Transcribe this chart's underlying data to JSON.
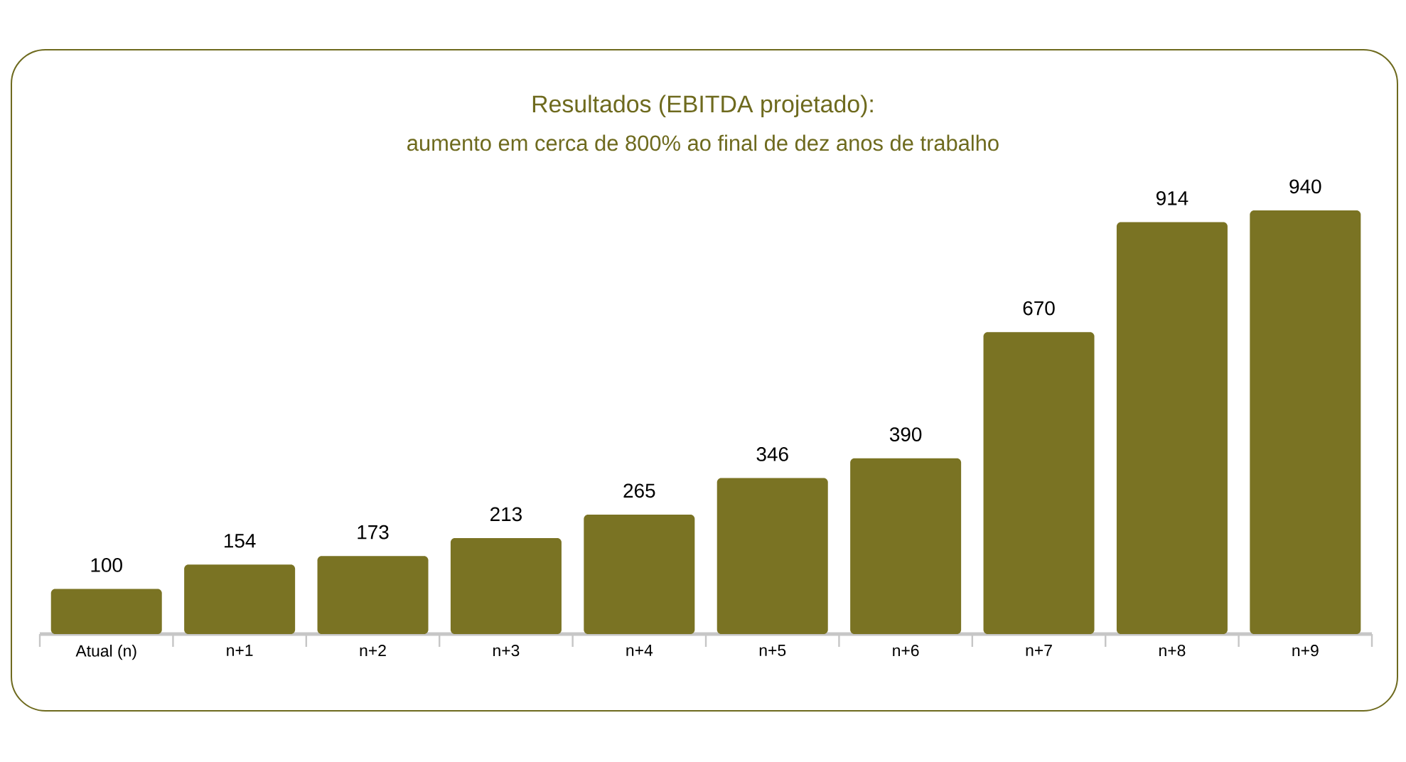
{
  "chart_data": {
    "type": "bar",
    "title": "Resultados (EBITDA projetado):",
    "subtitle": "aumento em cerca de 800% ao final de dez anos de trabalho",
    "categories": [
      "Atual (n)",
      "n+1",
      "n+2",
      "n+3",
      "n+4",
      "n+5",
      "n+6",
      "n+7",
      "n+8",
      "n+9"
    ],
    "values": [
      100,
      154,
      173,
      213,
      265,
      346,
      390,
      670,
      914,
      940
    ],
    "color": "#7a7323",
    "data_labels": true
  }
}
